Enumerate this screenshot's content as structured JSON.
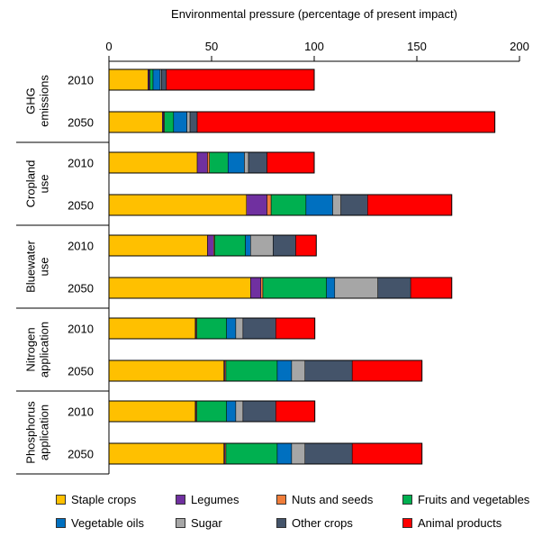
{
  "chart_data": {
    "type": "bar",
    "orientation": "horizontal",
    "stacked": true,
    "title": "Environmental pressure (percentage of present impact)",
    "xlim": [
      0,
      200
    ],
    "xticks": [
      0,
      50,
      100,
      150,
      200
    ],
    "categories": [
      "Staple crops",
      "Legumes",
      "Nuts and seeds",
      "Fruits and vegetables",
      "Vegetable oils",
      "Sugar",
      "Other crops",
      "Animal products"
    ],
    "colors": [
      "#FFC000",
      "#7030A0",
      "#F07D3A",
      "#00B050",
      "#0070C0",
      "#A6A6A6",
      "#44546A",
      "#FF0000"
    ],
    "groups": [
      {
        "label_lines": [
          "GHG",
          "emissions"
        ],
        "bars": [
          {
            "year": "2010",
            "values": [
              19,
              0.6,
              0.4,
              1.5,
              3.5,
              0.6,
              2.4,
              72
            ]
          },
          {
            "year": "2050",
            "values": [
              26,
              0.6,
              0.4,
              4.5,
              6.5,
              1.5,
              3.5,
              145
            ]
          }
        ]
      },
      {
        "label_lines": [
          "Cropland",
          "use"
        ],
        "bars": [
          {
            "year": "2010",
            "values": [
              43,
              5,
              1,
              9,
              8,
              2,
              9,
              23
            ]
          },
          {
            "year": "2050",
            "values": [
              67,
              10,
              2,
              17,
              13,
              4,
              13,
              41
            ]
          }
        ]
      },
      {
        "label_lines": [
          "Bluewater",
          "use"
        ],
        "bars": [
          {
            "year": "2010",
            "values": [
              48,
              3,
              0.5,
              15,
              2.5,
              11,
              11,
              10
            ]
          },
          {
            "year": "2050",
            "values": [
              69,
              5,
              1,
              31,
              4,
              21,
              16,
              20
            ]
          }
        ]
      },
      {
        "label_lines": [
          "Nitrogen",
          "application"
        ],
        "bars": [
          {
            "year": "2010",
            "values": [
              42,
              0.4,
              0.4,
              14.5,
              4.5,
              3.5,
              16,
              19
            ]
          },
          {
            "year": "2050",
            "values": [
              56,
              0.5,
              0.5,
              25,
              7,
              6.5,
              23,
              34
            ]
          }
        ]
      },
      {
        "label_lines": [
          "Phosphorus",
          "application"
        ],
        "bars": [
          {
            "year": "2010",
            "values": [
              42,
              0.4,
              0.4,
              14.5,
              4.5,
              3.5,
              16,
              19
            ]
          },
          {
            "year": "2050",
            "values": [
              56,
              0.5,
              0.5,
              25,
              7,
              6.5,
              23,
              34
            ]
          }
        ]
      }
    ],
    "legend": {
      "placement": "bottom",
      "rows": [
        [
          "Staple crops",
          "Legumes",
          "Nuts and seeds",
          "Fruits and vegetables"
        ],
        [
          "Vegetable oils",
          "Sugar",
          "Other crops",
          "Animal products"
        ]
      ]
    }
  }
}
